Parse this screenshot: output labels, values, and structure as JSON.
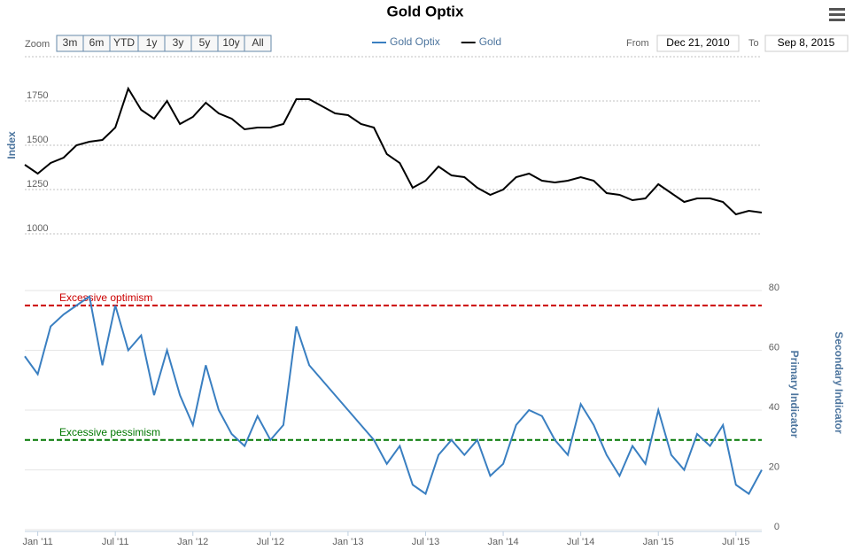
{
  "chart_data": {
    "type": "line",
    "title": "Gold Optix",
    "x": [
      "2010-12",
      "2011-01",
      "2011-02",
      "2011-03",
      "2011-04",
      "2011-05",
      "2011-06",
      "2011-07",
      "2011-08",
      "2011-09",
      "2011-10",
      "2011-11",
      "2011-12",
      "2012-01",
      "2012-02",
      "2012-03",
      "2012-04",
      "2012-05",
      "2012-06",
      "2012-07",
      "2012-08",
      "2012-09",
      "2012-10",
      "2012-11",
      "2012-12",
      "2013-01",
      "2013-02",
      "2013-03",
      "2013-04",
      "2013-05",
      "2013-06",
      "2013-07",
      "2013-08",
      "2013-09",
      "2013-10",
      "2013-11",
      "2013-12",
      "2014-01",
      "2014-02",
      "2014-03",
      "2014-04",
      "2014-05",
      "2014-06",
      "2014-07",
      "2014-08",
      "2014-09",
      "2014-10",
      "2014-11",
      "2014-12",
      "2015-01",
      "2015-02",
      "2015-03",
      "2015-04",
      "2015-05",
      "2015-06",
      "2015-07",
      "2015-08",
      "2015-09"
    ],
    "xlim": [
      "2010-12",
      "2015-09"
    ],
    "xticks": [
      {
        "value": "2011-01",
        "label": "Jan '11"
      },
      {
        "value": "2011-07",
        "label": "Jul '11"
      },
      {
        "value": "2012-01",
        "label": "Jan '12"
      },
      {
        "value": "2012-07",
        "label": "Jul '12"
      },
      {
        "value": "2013-01",
        "label": "Jan '13"
      },
      {
        "value": "2013-07",
        "label": "Jul '13"
      },
      {
        "value": "2014-01",
        "label": "Jan '14"
      },
      {
        "value": "2014-07",
        "label": "Jul '14"
      },
      {
        "value": "2015-01",
        "label": "Jan '15"
      },
      {
        "value": "2015-07",
        "label": "Jul '15"
      }
    ],
    "series": [
      {
        "name": "Gold Optix",
        "color": "#3a7fc1",
        "axis": "y2",
        "values": [
          58,
          52,
          68,
          72,
          75,
          78,
          55,
          75,
          60,
          65,
          45,
          60,
          45,
          35,
          55,
          40,
          32,
          28,
          38,
          30,
          35,
          68,
          55,
          50,
          45,
          40,
          35,
          30,
          22,
          28,
          15,
          12,
          25,
          30,
          25,
          30,
          18,
          22,
          35,
          40,
          38,
          30,
          25,
          42,
          35,
          25,
          18,
          28,
          22,
          40,
          25,
          20,
          32,
          28,
          35,
          15,
          12,
          20
        ]
      },
      {
        "name": "Gold",
        "color": "#000000",
        "values": [
          1390,
          1340,
          1400,
          1430,
          1500,
          1520,
          1530,
          1600,
          1820,
          1700,
          1650,
          1750,
          1620,
          1660,
          1740,
          1680,
          1650,
          1590,
          1600,
          1600,
          1620,
          1760,
          1760,
          1720,
          1680,
          1670,
          1620,
          1600,
          1450,
          1400,
          1260,
          1300,
          1380,
          1330,
          1320,
          1260,
          1220,
          1250,
          1320,
          1340,
          1300,
          1290,
          1300,
          1320,
          1300,
          1230,
          1220,
          1190,
          1200,
          1280,
          1230,
          1180,
          1200,
          1200,
          1180,
          1110,
          1130,
          1120
        ]
      }
    ],
    "ylabel": "Index",
    "ylim": [
      1000,
      2000
    ],
    "yticks": [
      1000,
      1250,
      1500,
      1750
    ],
    "y2labels": [
      "Primary Indicator",
      "Secondary Indicator"
    ],
    "y2lim": [
      0,
      80
    ],
    "y2ticks": [
      0,
      20,
      40,
      60,
      80
    ],
    "plot_lines": [
      {
        "value": 75,
        "label": "Excessive optimism",
        "color": "#cc0000"
      },
      {
        "value": 30,
        "label": "Excessive pessimism",
        "color": "#007700"
      }
    ],
    "grid": true
  },
  "controls": {
    "zoom_label": "Zoom",
    "zoom_buttons": [
      "3m",
      "6m",
      "YTD",
      "1y",
      "3y",
      "5y",
      "10y",
      "All"
    ],
    "from_label": "From",
    "from_value": "Dec 21, 2010",
    "to_label": "To",
    "to_value": "Sep 8, 2015"
  }
}
